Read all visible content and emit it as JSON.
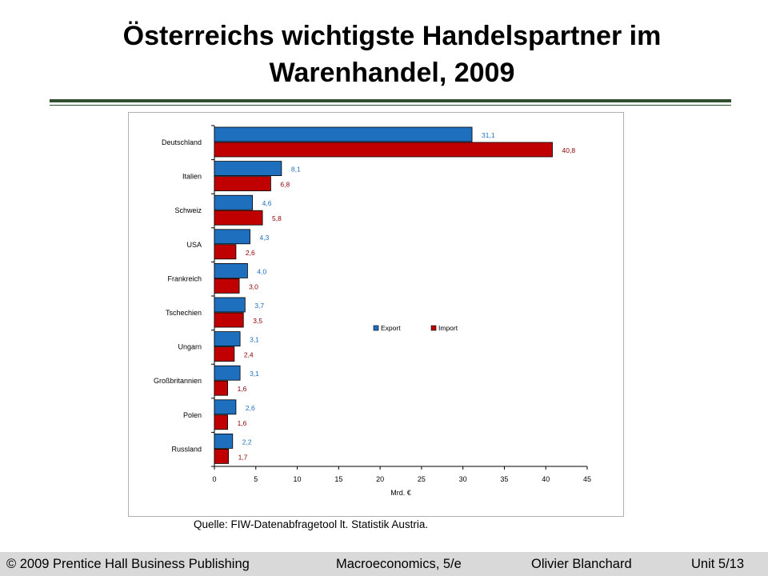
{
  "slide": {
    "title_line1": "Österreichs wichtigste Handelspartner im",
    "title_line2": "Warenhandel, 2009",
    "source": "Quelle: FIW-Datenabfragetool lt. Statistik Austria."
  },
  "footer": {
    "copyright": "© 2009 Prentice Hall Business Publishing",
    "book": "Macroeconomics, 5/e",
    "author": "Olivier Blanchard",
    "unit": "Unit 5/13"
  },
  "chart_data": {
    "type": "bar",
    "orientation": "horizontal",
    "categories": [
      "Deutschland",
      "Italien",
      "Schweiz",
      "USA",
      "Frankreich",
      "Tschechien",
      "Ungarn",
      "Großbritannien",
      "Polen",
      "Russland"
    ],
    "series": [
      {
        "name": "Export",
        "color": "#1f6fbf",
        "values": [
          31.1,
          8.1,
          4.6,
          4.3,
          4.0,
          3.7,
          3.1,
          3.1,
          2.6,
          2.2
        ],
        "labels": [
          "31,1",
          "8,1",
          "4,6",
          "4,3",
          "4,0",
          "3,7",
          "3,1",
          "3,1",
          "2,6",
          "2,2"
        ]
      },
      {
        "name": "Import",
        "color": "#c00000",
        "values": [
          40.8,
          6.8,
          5.8,
          2.6,
          3.0,
          3.5,
          2.4,
          1.6,
          1.6,
          1.7
        ],
        "labels": [
          "40,8",
          "6,8",
          "5,8",
          "2,6",
          "3,0",
          "3,5",
          "2,4",
          "1,6",
          "1,6",
          "1,7"
        ]
      }
    ],
    "xlim": [
      0,
      45
    ],
    "xticks": [
      "0",
      "5",
      "10",
      "15",
      "20",
      "25",
      "30",
      "35",
      "40",
      "45"
    ],
    "xlabel": "Mrd. €",
    "legend_position": "center-right",
    "label_colors": {
      "export": "#1f6fbf",
      "import": "#8b0000"
    }
  }
}
